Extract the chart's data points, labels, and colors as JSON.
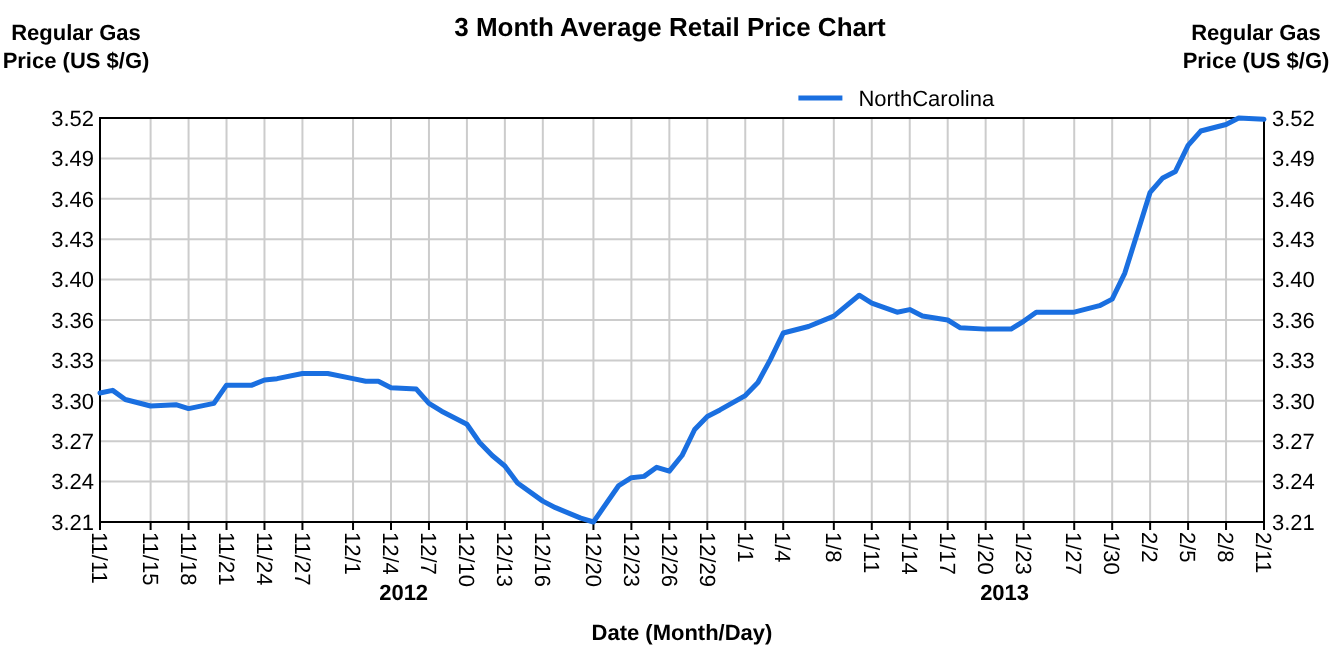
{
  "chart_data": {
    "type": "line",
    "title": "3 Month Average Retail Price Chart",
    "xlabel": "Date (Month/Day)",
    "ylabel": "Regular Gas Price (US $/G)",
    "y2label": "Regular Gas Price (US $/G)",
    "annotations": [
      "2012",
      "2013"
    ],
    "x": [
      "2012-11-11",
      "2012-11-12",
      "2012-11-13",
      "2012-11-15",
      "2012-11-17",
      "2012-11-18",
      "2012-11-20",
      "2012-11-21",
      "2012-11-23",
      "2012-11-24",
      "2012-11-25",
      "2012-11-27",
      "2012-11-29",
      "2012-12-01",
      "2012-12-02",
      "2012-12-03",
      "2012-12-04",
      "2012-12-06",
      "2012-12-07",
      "2012-12-08",
      "2012-12-10",
      "2012-12-11",
      "2012-12-12",
      "2012-12-13",
      "2012-12-14",
      "2012-12-16",
      "2012-12-17",
      "2012-12-19",
      "2012-12-20",
      "2012-12-22",
      "2012-12-23",
      "2012-12-24",
      "2012-12-25",
      "2012-12-26",
      "2012-12-27",
      "2012-12-28",
      "2012-12-29",
      "2012-12-30",
      "2013-01-01",
      "2013-01-02",
      "2013-01-03",
      "2013-01-04",
      "2013-01-06",
      "2013-01-08",
      "2013-01-10",
      "2013-01-11",
      "2013-01-13",
      "2013-01-14",
      "2013-01-15",
      "2013-01-17",
      "2013-01-18",
      "2013-01-20",
      "2013-01-22",
      "2013-01-23",
      "2013-01-24",
      "2013-01-27",
      "2013-01-29",
      "2013-01-30",
      "2013-01-31",
      "2013-02-01",
      "2013-02-02",
      "2013-02-03",
      "2013-02-04",
      "2013-02-05",
      "2013-02-06",
      "2013-02-08",
      "2013-02-09",
      "2013-02-11"
    ],
    "series": [
      {
        "name": "NorthCarolina",
        "color": "#1a6fe0",
        "values": [
          3.309,
          3.311,
          3.304,
          3.299,
          3.3,
          3.297,
          3.301,
          3.315,
          3.315,
          3.319,
          3.32,
          3.324,
          3.324,
          3.32,
          3.318,
          3.318,
          3.313,
          3.312,
          3.301,
          3.295,
          3.285,
          3.271,
          3.261,
          3.253,
          3.24,
          3.226,
          3.221,
          3.213,
          3.21,
          3.238,
          3.244,
          3.245,
          3.252,
          3.249,
          3.261,
          3.281,
          3.291,
          3.296,
          3.307,
          3.317,
          3.335,
          3.355,
          3.36,
          3.368,
          3.384,
          3.378,
          3.371,
          3.373,
          3.368,
          3.365,
          3.359,
          3.358,
          3.358,
          3.364,
          3.371,
          3.371,
          3.376,
          3.381,
          3.401,
          3.432,
          3.463,
          3.474,
          3.479,
          3.499,
          3.51,
          3.515,
          3.52,
          3.519
        ]
      }
    ],
    "xlim": [
      "2012-11-11",
      "2013-02-11"
    ],
    "xticks": [
      {
        "value": "2012-11-11",
        "label": "11/11"
      },
      {
        "value": "2012-11-15",
        "label": "11/15"
      },
      {
        "value": "2012-11-18",
        "label": "11/18"
      },
      {
        "value": "2012-11-21",
        "label": "11/21"
      },
      {
        "value": "2012-11-24",
        "label": "11/24"
      },
      {
        "value": "2012-11-27",
        "label": "11/27"
      },
      {
        "value": "2012-12-01",
        "label": "12/1"
      },
      {
        "value": "2012-12-04",
        "label": "12/4"
      },
      {
        "value": "2012-12-07",
        "label": "12/7"
      },
      {
        "value": "2012-12-10",
        "label": "12/10"
      },
      {
        "value": "2012-12-13",
        "label": "12/13"
      },
      {
        "value": "2012-12-16",
        "label": "12/16"
      },
      {
        "value": "2012-12-20",
        "label": "12/20"
      },
      {
        "value": "2012-12-23",
        "label": "12/23"
      },
      {
        "value": "2012-12-26",
        "label": "12/26"
      },
      {
        "value": "2012-12-29",
        "label": "12/29"
      },
      {
        "value": "2013-01-01",
        "label": "1/1"
      },
      {
        "value": "2013-01-04",
        "label": "1/4"
      },
      {
        "value": "2013-01-08",
        "label": "1/8"
      },
      {
        "value": "2013-01-11",
        "label": "1/11"
      },
      {
        "value": "2013-01-14",
        "label": "1/14"
      },
      {
        "value": "2013-01-17",
        "label": "1/17"
      },
      {
        "value": "2013-01-20",
        "label": "1/20"
      },
      {
        "value": "2013-01-23",
        "label": "1/23"
      },
      {
        "value": "2013-01-27",
        "label": "1/27"
      },
      {
        "value": "2013-01-30",
        "label": "1/30"
      },
      {
        "value": "2013-02-02",
        "label": "2/2"
      },
      {
        "value": "2013-02-05",
        "label": "2/5"
      },
      {
        "value": "2013-02-08",
        "label": "2/8"
      },
      {
        "value": "2013-02-11",
        "label": "2/11"
      }
    ],
    "ylim": [
      3.21,
      3.52
    ],
    "yticks": [
      3.21,
      {
        "value": 3.241,
        "label": "3.24"
      },
      {
        "value": 3.272,
        "label": "3.27"
      },
      {
        "value": 3.303,
        "label": "3.30"
      },
      {
        "value": 3.334,
        "label": "3.33"
      },
      {
        "value": 3.365,
        "label": "3.36"
      },
      {
        "value": 3.396,
        "label": "3.40"
      },
      {
        "value": 3.427,
        "label": "3.43"
      },
      {
        "value": 3.458,
        "label": "3.46"
      },
      {
        "value": 3.489,
        "label": "3.49"
      },
      3.52
    ],
    "y2lim": [
      3.21,
      3.52
    ],
    "y2ticks": [
      3.21,
      {
        "value": 3.241,
        "label": "3.24"
      },
      {
        "value": 3.272,
        "label": "3.27"
      },
      {
        "value": 3.303,
        "label": "3.30"
      },
      {
        "value": 3.334,
        "label": "3.33"
      },
      {
        "value": 3.365,
        "label": "3.36"
      },
      {
        "value": 3.396,
        "label": "3.40"
      },
      {
        "value": 3.427,
        "label": "3.43"
      },
      {
        "value": 3.458,
        "label": "3.46"
      },
      {
        "value": 3.489,
        "label": "3.49"
      },
      3.52
    ],
    "grid": true,
    "legend": "top",
    "marker": "none",
    "line_style": "solid"
  }
}
